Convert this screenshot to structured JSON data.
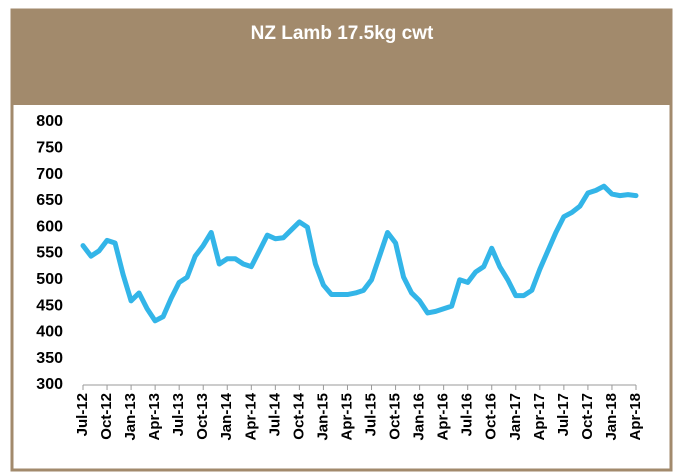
{
  "chart_data": {
    "type": "line",
    "title": "NZ Lamb 17.5kg cwt",
    "categories": [
      "Jul-12",
      null,
      null,
      "Oct-12",
      null,
      null,
      "Jan-13",
      null,
      null,
      "Apr-13",
      null,
      null,
      "Jul-13",
      null,
      null,
      "Oct-13",
      null,
      null,
      "Jan-14",
      null,
      null,
      "Apr-14",
      null,
      null,
      "Jul-14",
      null,
      null,
      "Oct-14",
      null,
      null,
      "Jan-15",
      null,
      null,
      "Apr-15",
      null,
      null,
      "Jul-15",
      null,
      null,
      "Oct-15",
      null,
      null,
      "Jan-16",
      null,
      null,
      "Apr-16",
      null,
      null,
      "Jul-16",
      null,
      null,
      "Oct-16",
      null,
      null,
      "Jan-17",
      null,
      null,
      "Apr-17",
      null,
      null,
      "Jul-17",
      null,
      null,
      "Oct-17",
      null,
      null,
      "Jan-18",
      null,
      null,
      "Apr-18"
    ],
    "values": [
      565,
      545,
      555,
      575,
      570,
      510,
      460,
      475,
      445,
      422,
      430,
      465,
      495,
      505,
      545,
      565,
      590,
      530,
      540,
      540,
      530,
      525,
      555,
      585,
      578,
      580,
      595,
      610,
      600,
      530,
      490,
      472,
      472,
      472,
      475,
      480,
      500,
      545,
      590,
      570,
      505,
      475,
      460,
      437,
      440,
      445,
      450,
      500,
      495,
      515,
      525,
      560,
      525,
      500,
      470,
      470,
      480,
      520,
      555,
      590,
      620,
      628,
      640,
      665,
      670,
      678,
      663,
      660,
      662,
      660
    ],
    "color": "#33b5e8",
    "ylim": [
      300,
      800
    ],
    "yticks": [
      300,
      350,
      400,
      450,
      500,
      550,
      600,
      650,
      700,
      750,
      800
    ],
    "grid": false
  }
}
